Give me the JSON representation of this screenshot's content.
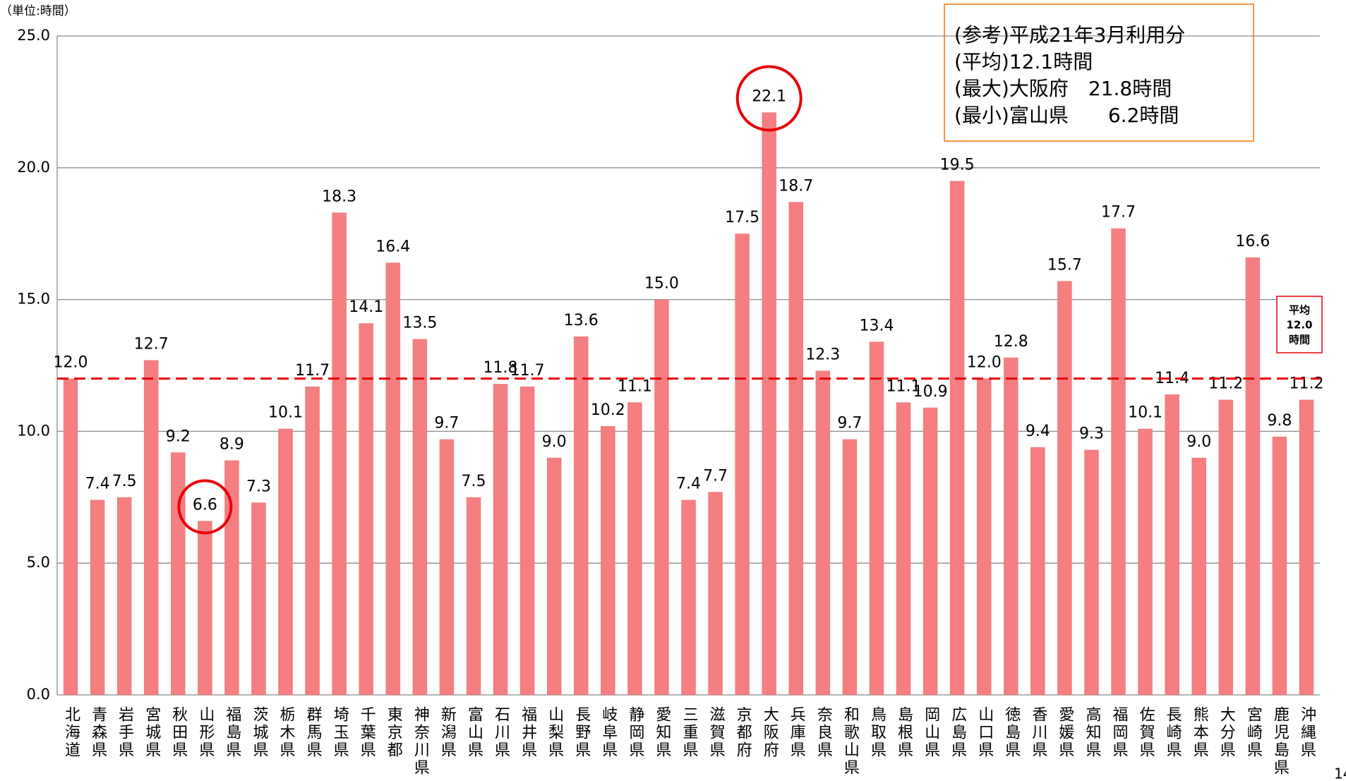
{
  "chart_data": {
    "type": "bar",
    "unit_label": "（単位:時間）",
    "categories": [
      "北海道",
      "青森県",
      "岩手県",
      "宮城県",
      "秋田県",
      "山形県",
      "福島県",
      "茨城県",
      "栃木県",
      "群馬県",
      "埼玉県",
      "千葉県",
      "東京都",
      "神奈川県",
      "新潟県",
      "富山県",
      "石川県",
      "福井県",
      "山梨県",
      "長野県",
      "岐阜県",
      "静岡県",
      "愛知県",
      "三重県",
      "滋賀県",
      "京都府",
      "大阪府",
      "兵庫県",
      "奈良県",
      "和歌山県",
      "鳥取県",
      "島根県",
      "岡山県",
      "広島県",
      "山口県",
      "徳島県",
      "香川県",
      "愛媛県",
      "高知県",
      "福岡県",
      "佐賀県",
      "長崎県",
      "熊本県",
      "大分県",
      "宮崎県",
      "鹿児島県",
      "沖縄県"
    ],
    "values": [
      12.0,
      7.4,
      7.5,
      12.7,
      9.2,
      6.6,
      8.9,
      7.3,
      10.1,
      11.7,
      18.3,
      14.1,
      16.4,
      13.5,
      9.7,
      7.5,
      11.8,
      11.7,
      9.0,
      13.6,
      10.2,
      11.1,
      15.0,
      7.4,
      7.7,
      17.5,
      22.1,
      18.7,
      12.3,
      9.7,
      13.4,
      11.1,
      10.9,
      19.5,
      12.0,
      12.8,
      9.4,
      15.7,
      9.3,
      17.7,
      10.1,
      11.4,
      9.0,
      11.2,
      16.6,
      9.8,
      11.2
    ],
    "value_labels": [
      "12.0",
      "7.4",
      "7.5",
      "12.7",
      "9.2",
      "6.6",
      "8.9",
      "7.3",
      "10.1",
      "11.7",
      "18.3",
      "14.1",
      "16.4",
      "13.5",
      "9.7",
      "7.5",
      "11.8",
      "11.7",
      "9.0",
      "13.6",
      "10.2",
      "11.1",
      "15.0",
      "7.4",
      "7.7",
      "17.5",
      "22.1",
      "18.7",
      "12.3",
      "9.7",
      "13.4",
      "11.1",
      "10.9",
      "19.5",
      "12.0",
      "12.8",
      "9.4",
      "15.7",
      "9.3",
      "17.7",
      "10.1",
      "11.4",
      "9.0",
      "11.2",
      "16.6",
      "9.8",
      "11.2"
    ],
    "color": "#f47e80",
    "ylim": [
      0,
      25
    ],
    "yticks": [
      {
        "value": 0,
        "label": "0.0"
      },
      {
        "value": 5,
        "label": "5.0"
      },
      {
        "value": 10,
        "label": "10.0"
      },
      {
        "value": 15,
        "label": "15.0"
      },
      {
        "value": 20,
        "label": "20.0"
      },
      {
        "value": 25,
        "label": "25.0"
      }
    ],
    "grid": true,
    "average_line": {
      "value": 12.0,
      "color": "#e8000b",
      "label": [
        "平均",
        "12.0",
        "時間"
      ]
    },
    "note": [
      "(参考)平成21年3月利用分",
      "(平均)12.1時間",
      "(最大)大阪府　21.8時間",
      "(最小)富山県　　6.2時間"
    ],
    "page_number": "14"
  }
}
